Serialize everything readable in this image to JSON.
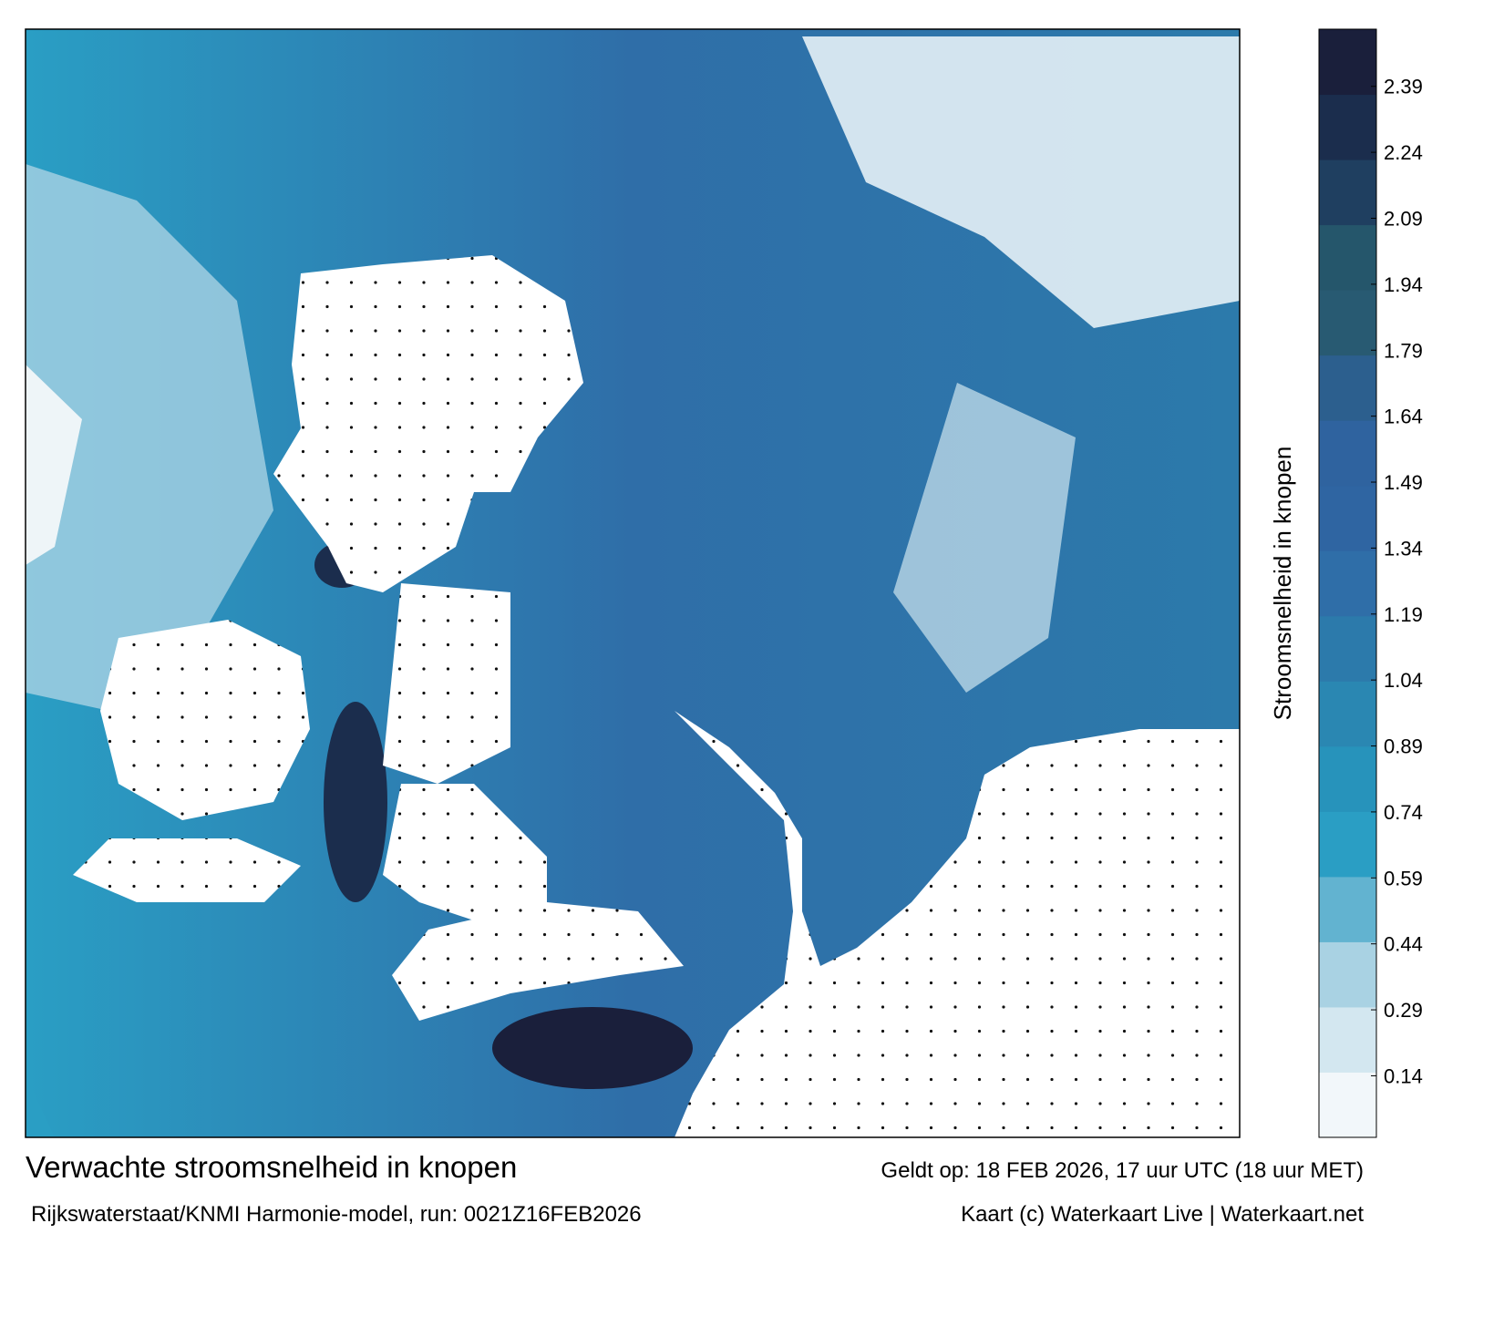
{
  "title": "Verwachte stroomsnelheid in knopen",
  "subtitle": "Rijkswaterstaat/KNMI Harmonie-model, run: 0021Z16FEB2026",
  "valid_time": "Geldt op: 18 FEB 2026, 17 uur UTC (18 uur MET)",
  "credit": "Kaart (c) Waterkaart Live | Waterkaart.net",
  "colorbar": {
    "label": "Stroomsnelheid in knopen",
    "lim": [
      0,
      2.52
    ],
    "ticks": [
      0.14,
      0.29,
      0.44,
      0.59,
      0.74,
      0.89,
      1.04,
      1.19,
      1.34,
      1.49,
      1.64,
      1.79,
      1.94,
      2.09,
      2.24,
      2.39
    ],
    "colors": [
      "#f2f7fa",
      "#d3e7f0",
      "#a9d2e3",
      "#62b3d0",
      "#2a9ec4",
      "#2793bb",
      "#2a87b2",
      "#2c7aab",
      "#2f6ea8",
      "#2f65a2",
      "#2f639f",
      "#2c5f8e",
      "#285a72",
      "#25566b",
      "#1f3f60",
      "#1b2d4d",
      "#1a1f3b"
    ]
  }
}
